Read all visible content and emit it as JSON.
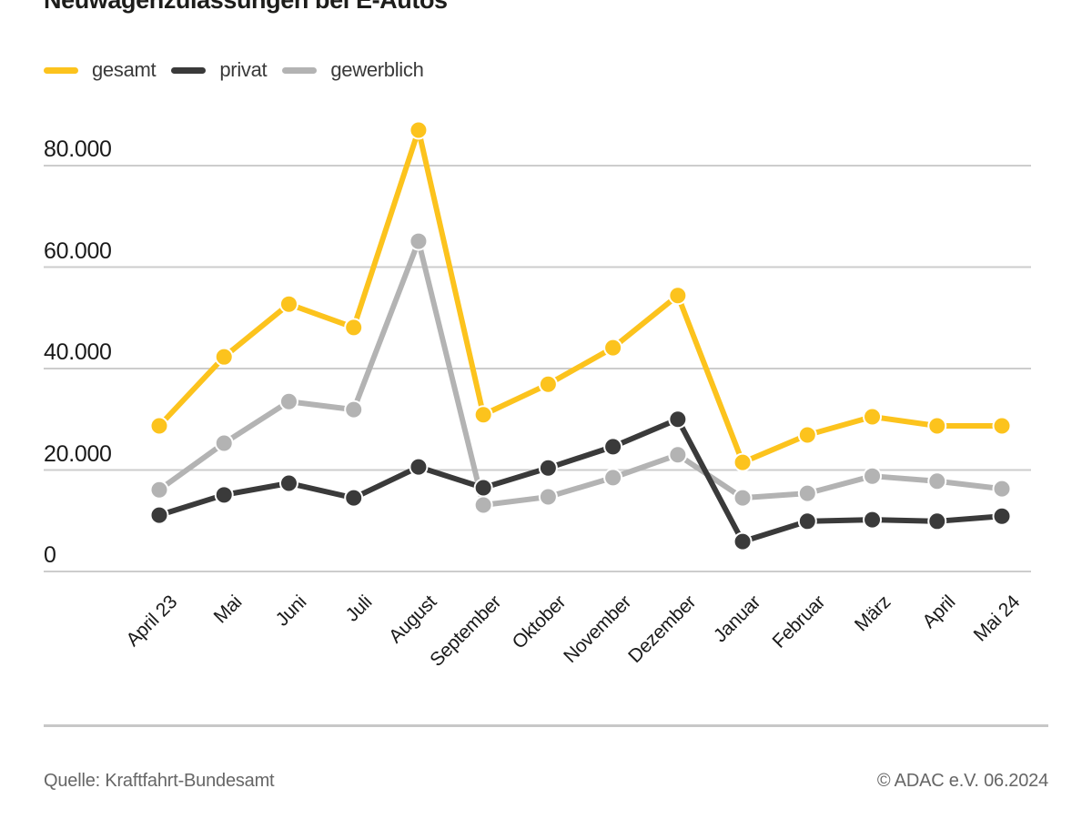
{
  "page": {
    "title": "Neuwagenzulassungen bei E-Autos",
    "source": "Quelle: Kraftfahrt-Bundesamt",
    "copyright": "© ADAC e.V. 06.2024"
  },
  "legend": {
    "items": [
      {
        "label": "gesamt"
      },
      {
        "label": "privat"
      },
      {
        "label": "gewerblich"
      }
    ]
  },
  "chart_data": {
    "type": "line",
    "title": "Neuwagenzulassungen bei E-Autos",
    "categories": [
      "April 23",
      "Mai",
      "Juni",
      "Juli",
      "August",
      "September",
      "Oktober",
      "November",
      "Dezember",
      "Januar",
      "Februar",
      "März",
      "April",
      "Mai 24"
    ],
    "series": [
      {
        "name": "gesamt",
        "color": "#fcc31d",
        "values": [
          28700,
          42300,
          52700,
          48100,
          87000,
          30900,
          36900,
          44100,
          54400,
          21500,
          26900,
          30500,
          28700,
          28700
        ]
      },
      {
        "name": "privat",
        "color": "#3a3a3a",
        "values": [
          11100,
          15100,
          17400,
          14500,
          20600,
          16500,
          20400,
          24600,
          30000,
          5900,
          9900,
          10200,
          9900,
          10900
        ]
      },
      {
        "name": "gewerblich",
        "color": "#b3b3b3",
        "values": [
          16100,
          25300,
          33500,
          31900,
          65100,
          13100,
          14700,
          18500,
          23000,
          14500,
          15400,
          18800,
          17800,
          16300
        ]
      }
    ],
    "yticks": [
      {
        "value": 0,
        "label": "0"
      },
      {
        "value": 20000,
        "label": "20.000"
      },
      {
        "value": 40000,
        "label": "40.000"
      },
      {
        "value": 60000,
        "label": "60.000"
      },
      {
        "value": 80000,
        "label": "80.000"
      }
    ],
    "ylim": [
      0,
      88000
    ],
    "xlabel": "",
    "ylabel": "",
    "grid": "horizontal-only",
    "gridline_color": "#cdcdcd",
    "legend_position": "top-left"
  }
}
